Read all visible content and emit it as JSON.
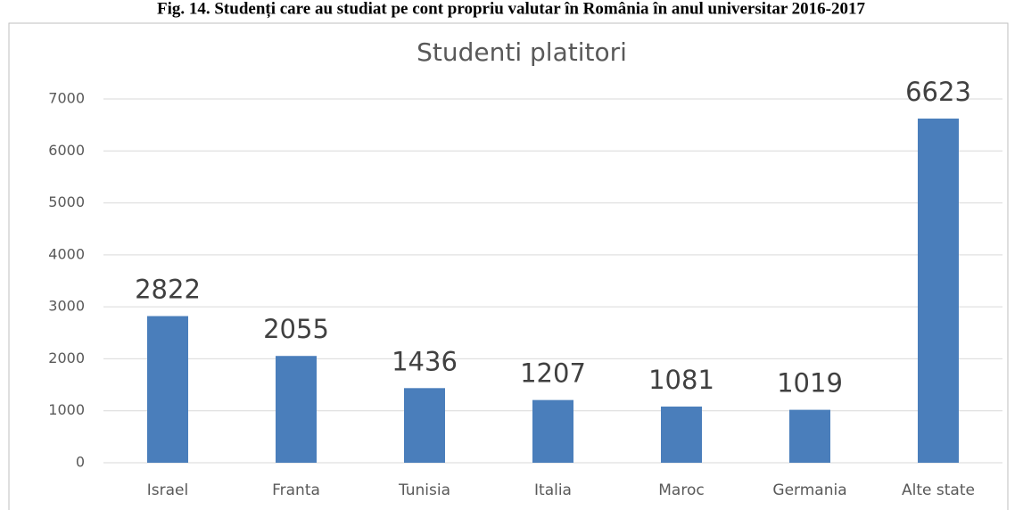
{
  "caption": "Fig. 14. Studenți care au studiat pe cont propriu valutar în România în anul universitar 2016-2017",
  "chart_data": {
    "type": "bar",
    "title": "Studenti platitori",
    "categories": [
      "Israel",
      "Franta",
      "Tunisia",
      "Italia",
      "Maroc",
      "Germania",
      "Alte state"
    ],
    "values": [
      2822,
      2055,
      1436,
      1207,
      1081,
      1019,
      6623
    ],
    "color": "#4a7ebb",
    "ylim": [
      0,
      7000
    ],
    "yticks": [
      0,
      1000,
      2000,
      3000,
      4000,
      5000,
      6000,
      7000
    ],
    "grid": true
  }
}
